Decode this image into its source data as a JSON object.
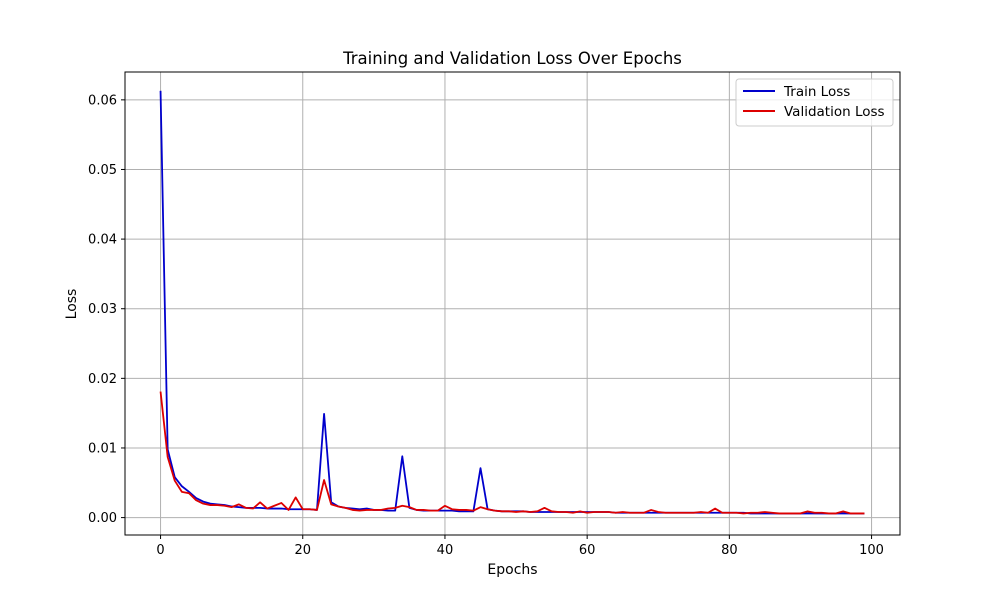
{
  "chart_data": {
    "type": "line",
    "title": "Training and Validation Loss Over Epochs",
    "xlabel": "Epochs",
    "ylabel": "Loss",
    "xlim": [
      -5,
      104
    ],
    "ylim": [
      -0.0025,
      0.064
    ],
    "xticks": [
      0,
      20,
      40,
      60,
      80,
      100
    ],
    "xtick_labels": [
      "0",
      "20",
      "40",
      "60",
      "80",
      "100"
    ],
    "yticks": [
      0.0,
      0.01,
      0.02,
      0.03,
      0.04,
      0.05,
      0.06
    ],
    "ytick_labels": [
      "0.00",
      "0.01",
      "0.02",
      "0.03",
      "0.04",
      "0.05",
      "0.06"
    ],
    "grid": true,
    "legend_position": "top-right",
    "x": [
      0,
      1,
      2,
      3,
      4,
      5,
      6,
      7,
      8,
      9,
      10,
      11,
      12,
      13,
      14,
      15,
      16,
      17,
      18,
      19,
      20,
      21,
      22,
      23,
      24,
      25,
      26,
      27,
      28,
      29,
      30,
      31,
      32,
      33,
      34,
      35,
      36,
      37,
      38,
      39,
      40,
      41,
      42,
      43,
      44,
      45,
      46,
      47,
      48,
      49,
      50,
      51,
      52,
      53,
      54,
      55,
      56,
      57,
      58,
      59,
      60,
      61,
      62,
      63,
      64,
      65,
      66,
      67,
      68,
      69,
      70,
      71,
      72,
      73,
      74,
      75,
      76,
      77,
      78,
      79,
      80,
      81,
      82,
      83,
      84,
      85,
      86,
      87,
      88,
      89,
      90,
      91,
      92,
      93,
      94,
      95,
      96,
      97,
      98,
      99
    ],
    "series": [
      {
        "name": "Train Loss",
        "color": "#0000cc",
        "values": [
          0.0613,
          0.0098,
          0.0058,
          0.0045,
          0.0037,
          0.0028,
          0.0023,
          0.002,
          0.0019,
          0.0018,
          0.0016,
          0.0015,
          0.0014,
          0.0014,
          0.0014,
          0.0013,
          0.0013,
          0.0013,
          0.0012,
          0.0012,
          0.0012,
          0.0012,
          0.0011,
          0.0149,
          0.0022,
          0.0016,
          0.0014,
          0.0013,
          0.0012,
          0.0013,
          0.0011,
          0.0011,
          0.001,
          0.001,
          0.0088,
          0.0014,
          0.0011,
          0.001,
          0.001,
          0.001,
          0.001,
          0.001,
          0.0009,
          0.0009,
          0.0009,
          0.0071,
          0.0012,
          0.001,
          0.0009,
          0.0009,
          0.0009,
          0.0009,
          0.0008,
          0.0008,
          0.0008,
          0.0008,
          0.0008,
          0.0008,
          0.0008,
          0.0008,
          0.0008,
          0.0008,
          0.0008,
          0.0008,
          0.0007,
          0.0007,
          0.0007,
          0.0007,
          0.0007,
          0.0007,
          0.0007,
          0.0007,
          0.0007,
          0.0007,
          0.0007,
          0.0007,
          0.0007,
          0.0007,
          0.0007,
          0.0007,
          0.0007,
          0.0007,
          0.0007,
          0.0006,
          0.0006,
          0.0006,
          0.0006,
          0.0006,
          0.0006,
          0.0006,
          0.0006,
          0.0006,
          0.0006,
          0.0006,
          0.0006,
          0.0006,
          0.0006,
          0.0006,
          0.0006,
          0.0006
        ]
      },
      {
        "name": "Validation Loss",
        "color": "#dd0000",
        "values": [
          0.0181,
          0.0087,
          0.0053,
          0.0037,
          0.0035,
          0.0025,
          0.002,
          0.0018,
          0.0018,
          0.0017,
          0.0015,
          0.0019,
          0.0014,
          0.0013,
          0.0022,
          0.0013,
          0.0017,
          0.0021,
          0.0011,
          0.0029,
          0.0012,
          0.0012,
          0.0011,
          0.0054,
          0.0019,
          0.0016,
          0.0014,
          0.0011,
          0.001,
          0.0011,
          0.0011,
          0.0011,
          0.0013,
          0.0014,
          0.0017,
          0.0015,
          0.0011,
          0.0011,
          0.001,
          0.001,
          0.0017,
          0.0012,
          0.0011,
          0.0011,
          0.001,
          0.0015,
          0.0012,
          0.001,
          0.0009,
          0.0009,
          0.0008,
          0.0009,
          0.0008,
          0.0009,
          0.0014,
          0.0009,
          0.0008,
          0.0008,
          0.0007,
          0.0009,
          0.0007,
          0.0008,
          0.0008,
          0.0008,
          0.0007,
          0.0008,
          0.0007,
          0.0007,
          0.0007,
          0.0011,
          0.0008,
          0.0007,
          0.0007,
          0.0007,
          0.0007,
          0.0007,
          0.0008,
          0.0007,
          0.0013,
          0.0007,
          0.0007,
          0.0007,
          0.0006,
          0.0007,
          0.0007,
          0.0008,
          0.0007,
          0.0006,
          0.0006,
          0.0006,
          0.0006,
          0.0009,
          0.0007,
          0.0007,
          0.0006,
          0.0006,
          0.0009,
          0.0006,
          0.0006,
          0.0006
        ]
      }
    ]
  }
}
